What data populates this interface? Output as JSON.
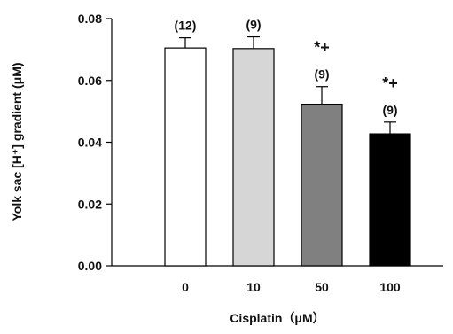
{
  "chart_data": {
    "type": "bar",
    "title": "",
    "xlabel": "Cisplatin（μM）",
    "ylabel": "Yolk sac [H⁺] gradient (μM)",
    "ylim": [
      0,
      0.08
    ],
    "yticks": [
      "0.00",
      "0.02",
      "0.04",
      "0.06",
      "0.08"
    ],
    "ytick_values": [
      0,
      0.02,
      0.04,
      0.06,
      0.08
    ],
    "grid": false,
    "categories": [
      "0",
      "10",
      "50",
      "100"
    ],
    "values": [
      0.0705,
      0.0703,
      0.0523,
      0.0427
    ],
    "errors": [
      0.0033,
      0.0038,
      0.0057,
      0.0038
    ],
    "n_labels": [
      "(12)",
      "(9)",
      "(9)",
      "(9)"
    ],
    "significance": [
      "",
      "",
      "*+",
      "*+"
    ],
    "colors": [
      "#ffffff",
      "#d6d6d6",
      "#808080",
      "#000000"
    ],
    "edge_color": "#000000"
  }
}
